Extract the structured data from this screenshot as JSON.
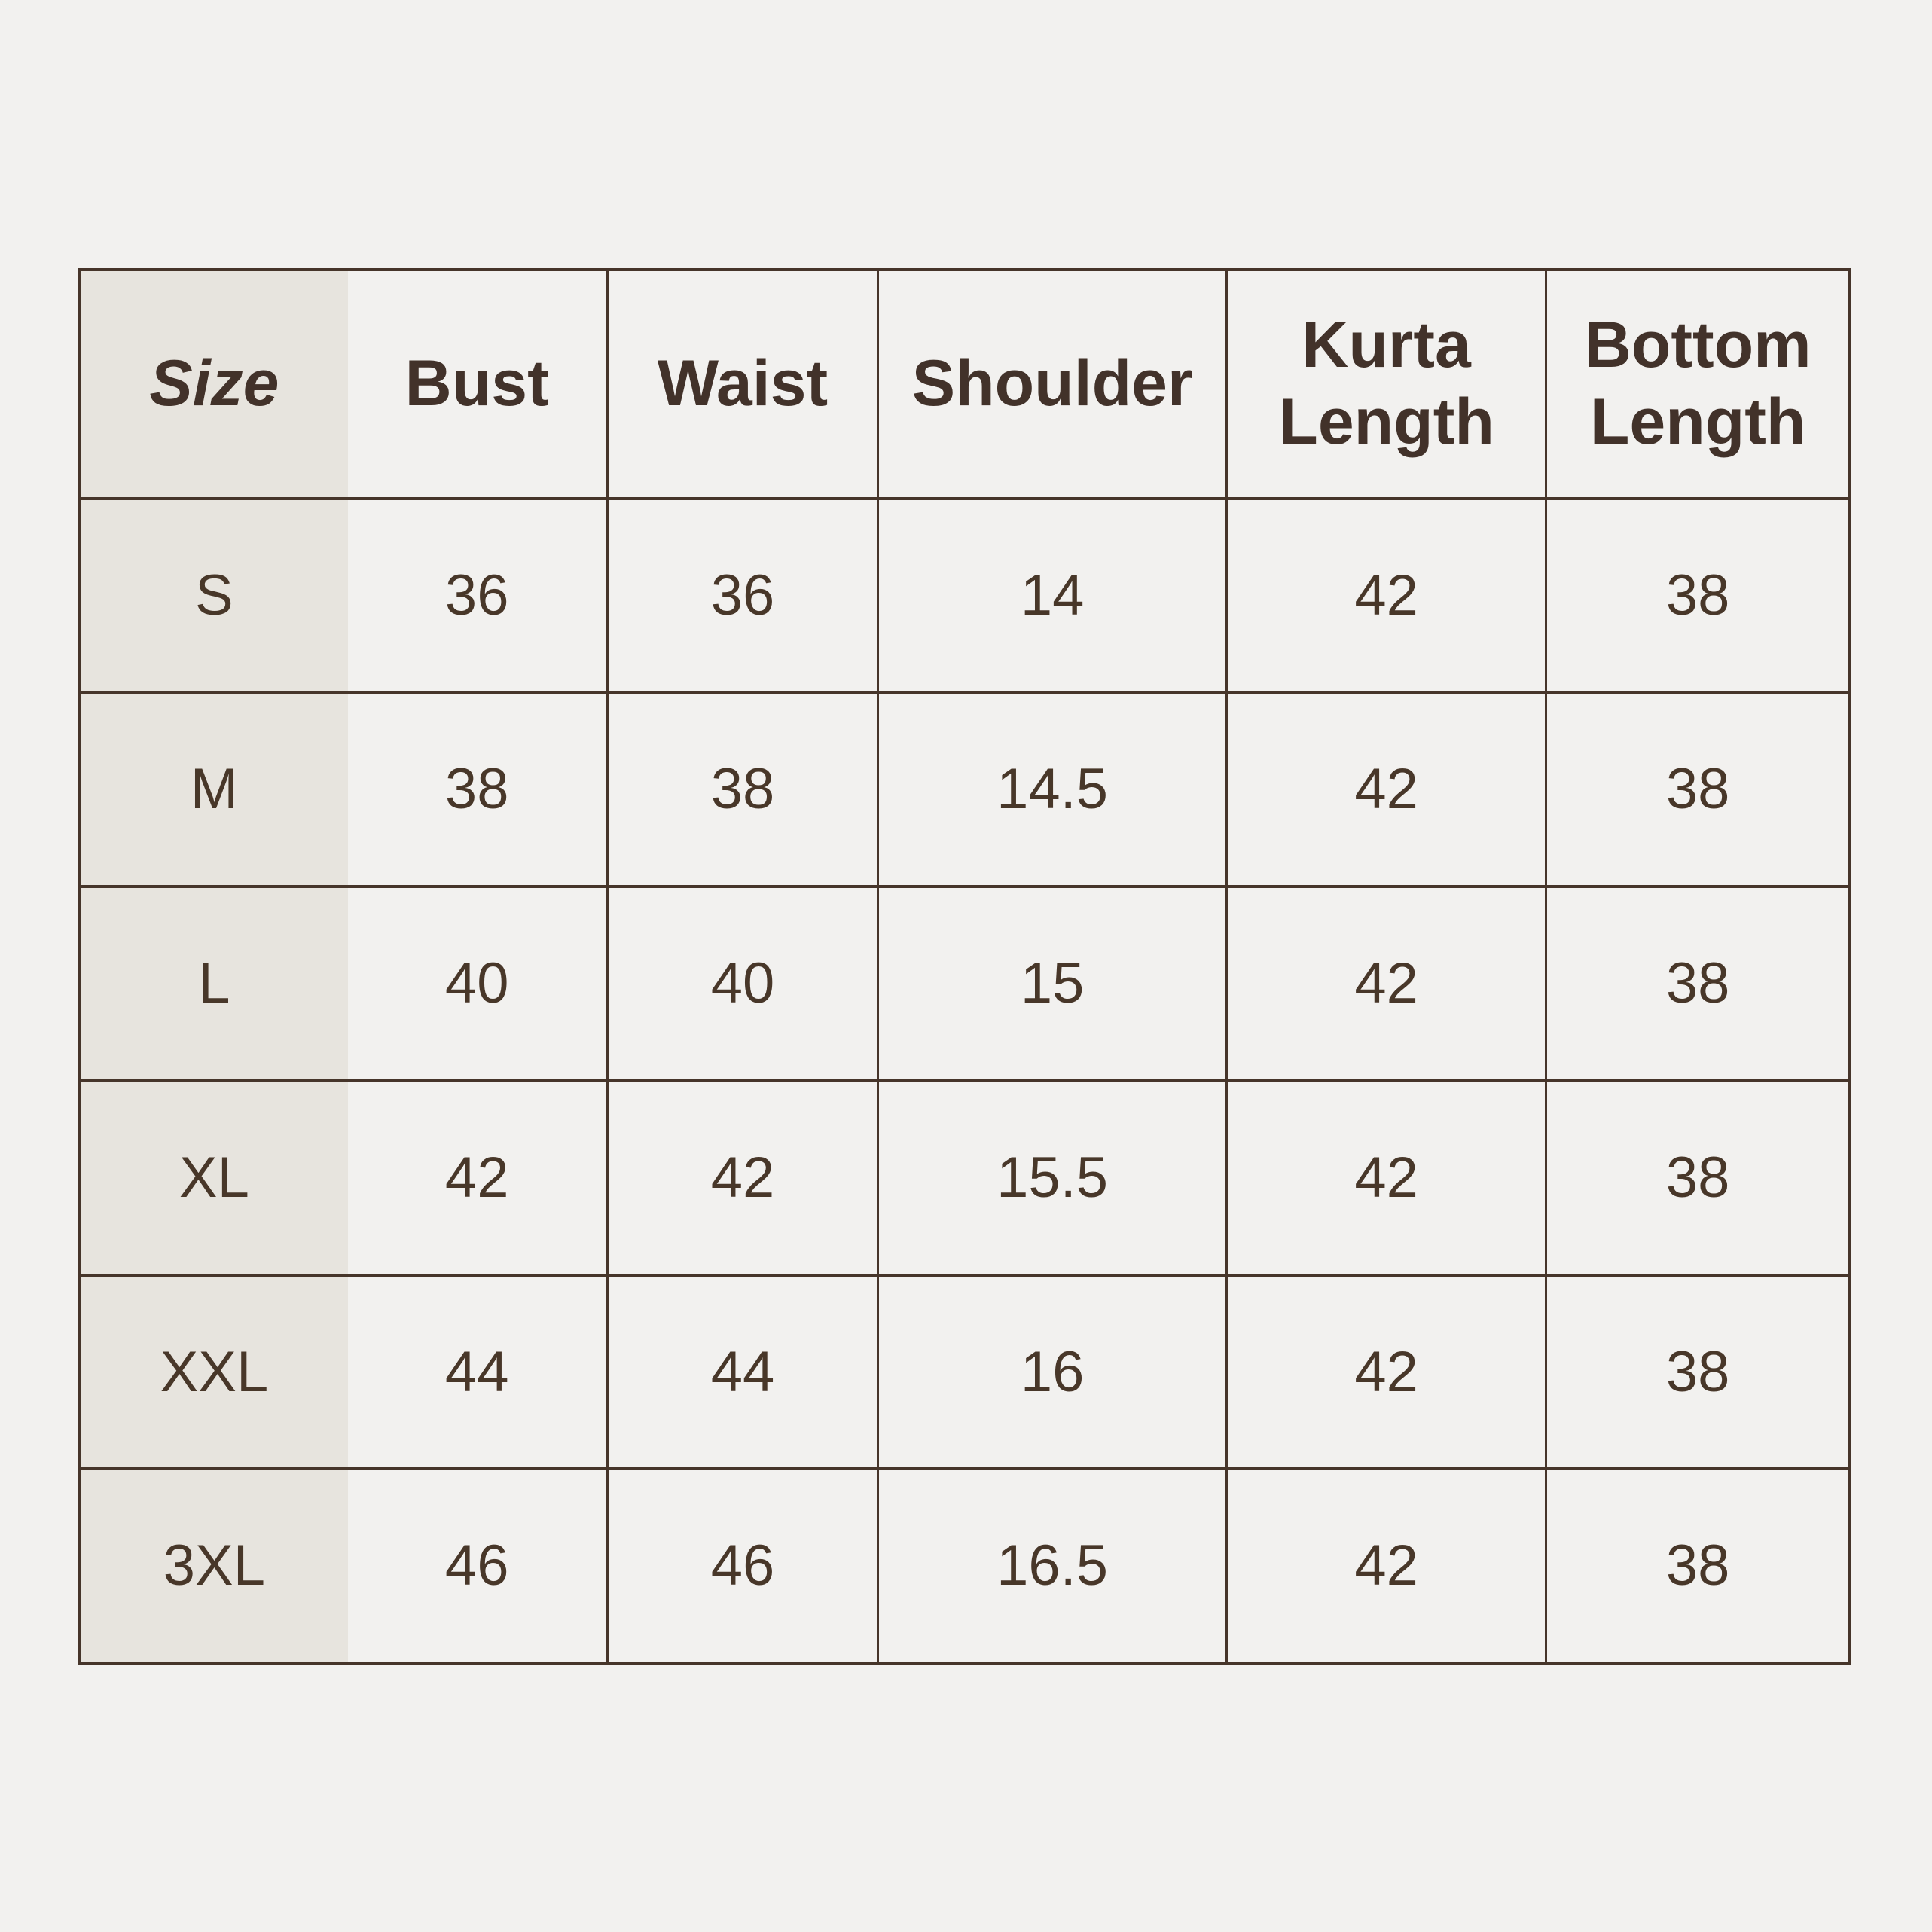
{
  "title": "Kurta set size chart",
  "colors": {
    "page_background": "#f2f1ef",
    "size_column_background": "#e7e4de",
    "table_border": "#46352a",
    "text": "#483729"
  },
  "chart_data": {
    "type": "table",
    "title": "",
    "columns": [
      "Size",
      "Bust",
      "Waist",
      "Shoulder",
      "Kurta Length",
      "Bottom Length"
    ],
    "rows": [
      [
        "S",
        "36",
        "36",
        "14",
        "42",
        "38"
      ],
      [
        "M",
        "38",
        "38",
        "14.5",
        "42",
        "38"
      ],
      [
        "L",
        "40",
        "40",
        "15",
        "42",
        "38"
      ],
      [
        "XL",
        "42",
        "42",
        "15.5",
        "42",
        "38"
      ],
      [
        "XXL",
        "44",
        "44",
        "16",
        "42",
        "38"
      ],
      [
        "3XL",
        "46",
        "46",
        "16.5",
        "42",
        "38"
      ]
    ],
    "layout_hints": {
      "header_row": true,
      "highlighted_column": "Size",
      "grid": "all inner lines except between Size and Bust columns"
    }
  }
}
